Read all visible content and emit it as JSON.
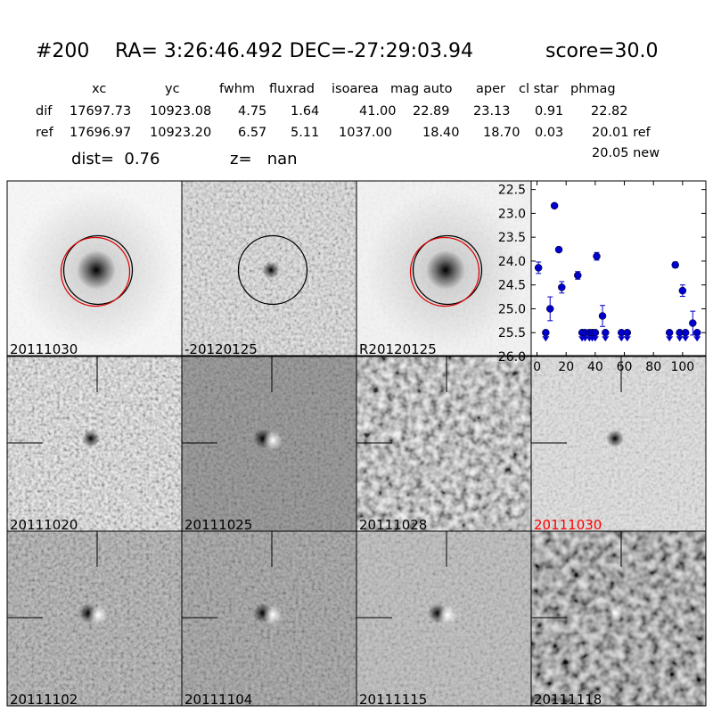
{
  "header": {
    "id": "#200",
    "coordinates": "RA= 3:26:46.492 DEC=-27:29:03.94",
    "score": "score=30.0"
  },
  "table": {
    "columns": [
      "xc",
      "yc",
      "fwhm",
      "fluxrad",
      "isoarea",
      "mag auto",
      "aper",
      "cl star",
      "phmag"
    ],
    "rows": [
      {
        "label": "dif",
        "cells": [
          "17697.73",
          "10923.08",
          "4.75",
          "1.64",
          "41.00",
          "22.89",
          "23.13",
          "0.91",
          "22.82"
        ]
      },
      {
        "label": "ref",
        "cells": [
          "17696.97",
          "10923.20",
          "6.57",
          "5.11",
          "1037.00",
          "18.40",
          "18.70",
          "0.03",
          "20.01 ref"
        ]
      }
    ],
    "note": "20.05 new"
  },
  "distance": "dist=  0.76",
  "redshift": "z=   nan",
  "panels": [
    "20111030",
    "-20120125",
    "R20120125",
    null,
    "20111020",
    "20111025",
    "20111028",
    "20111030",
    "20111102",
    "20111104",
    "20111115",
    "20111118"
  ],
  "chart_data": {
    "type": "scatter",
    "xlim": [
      -4,
      116
    ],
    "xticks": [
      0,
      20,
      40,
      60,
      80,
      100
    ],
    "ylim": [
      26.0,
      22.32
    ],
    "yticks": [
      22.5,
      {
        "value": 23,
        "label": "23.0"
      },
      23.5,
      {
        "value": 24,
        "label": "24.0"
      },
      24.5,
      {
        "value": 25,
        "label": "25.0"
      },
      25.5,
      {
        "value": 26,
        "label": "26.0"
      }
    ],
    "series": [
      {
        "color": "#0000cc",
        "marker": "detection",
        "x": [
          1,
          9,
          12,
          15,
          17,
          28,
          41,
          45,
          95,
          100,
          107
        ],
        "values": [
          24.14,
          25.0,
          22.84,
          23.76,
          24.55,
          24.3,
          23.9,
          25.15,
          24.08,
          24.62,
          25.3
        ],
        "errors": [
          0.12,
          0.25,
          0.03,
          0.05,
          0.12,
          0.08,
          0.08,
          0.22,
          0.06,
          0.12,
          0.25
        ]
      },
      {
        "color": "#0000cc",
        "marker": "upper-limit",
        "x": [
          6,
          31,
          33,
          36,
          38,
          40,
          47,
          58,
          62,
          91,
          98,
          102,
          110
        ],
        "values": [
          25.5,
          25.5,
          25.5,
          25.5,
          25.5,
          25.5,
          25.5,
          25.5,
          25.5,
          25.5,
          25.5,
          25.5,
          25.5
        ]
      }
    ]
  }
}
